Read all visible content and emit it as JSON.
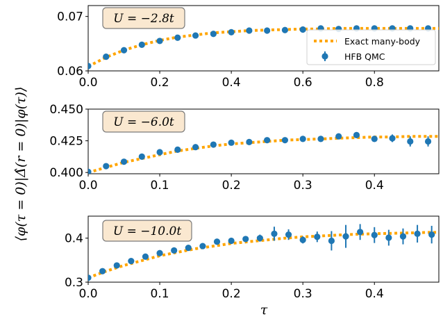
{
  "chart_data": {
    "type": "scatter",
    "ylabel": "⟨φ(τ = 0)|Δ̂(r = 0)|φ(τ)⟩",
    "xlabel": "τ",
    "legend": {
      "position": "lower-right",
      "entries": [
        "Exact many-body",
        "HFB QMC"
      ]
    },
    "colors": {
      "exact": "#ffa500",
      "qmc": "#1f77b4"
    },
    "panels": [
      {
        "annotation": "U = −2.8t",
        "xlim": [
          0,
          0.98
        ],
        "ylim": [
          0.06,
          0.072
        ],
        "xticks": [
          "0.0",
          "0.2",
          "0.4",
          "0.6",
          "0.8"
        ],
        "yticks": [
          "0.06",
          "0.07"
        ],
        "xtick_values": [
          0,
          0.2,
          0.4,
          0.6,
          0.8
        ],
        "ytick_values": [
          0.06,
          0.07
        ],
        "exact": {
          "x": [
            0,
            0.05,
            0.1,
            0.15,
            0.2,
            0.25,
            0.3,
            0.35,
            0.4,
            0.45,
            0.5,
            0.55,
            0.6,
            0.65,
            0.7,
            0.75,
            0.8,
            0.85,
            0.9,
            0.95,
            0.98
          ],
          "y": [
            0.0608,
            0.0625,
            0.0638,
            0.0648,
            0.0656,
            0.0662,
            0.0666,
            0.067,
            0.0672,
            0.0674,
            0.0675,
            0.0676,
            0.0677,
            0.0677,
            0.0678,
            0.0678,
            0.0678,
            0.0678,
            0.0678,
            0.0678,
            0.0678
          ]
        },
        "qmc": {
          "x": [
            0.0,
            0.05,
            0.1,
            0.15,
            0.2,
            0.25,
            0.3,
            0.35,
            0.4,
            0.45,
            0.5,
            0.55,
            0.6,
            0.65,
            0.7,
            0.75,
            0.8,
            0.85,
            0.9,
            0.95
          ],
          "y": [
            0.0609,
            0.0626,
            0.0638,
            0.0648,
            0.0655,
            0.0661,
            0.0665,
            0.0668,
            0.0671,
            0.0674,
            0.0674,
            0.0675,
            0.0676,
            0.0678,
            0.0677,
            0.0678,
            0.0678,
            0.0678,
            0.0678,
            0.0678
          ],
          "err": [
            0,
            0,
            0,
            0,
            0,
            0,
            0,
            0,
            0,
            0,
            0,
            0,
            0,
            0,
            0,
            0,
            0,
            0,
            0,
            0
          ]
        }
      },
      {
        "annotation": "U = −6.0t",
        "xlim": [
          0,
          0.49
        ],
        "ylim": [
          0.399,
          0.45
        ],
        "xticks": [
          "0.0",
          "0.1",
          "0.2",
          "0.3",
          "0.4"
        ],
        "yticks": [
          "0.400",
          "0.425",
          "0.450"
        ],
        "xtick_values": [
          0,
          0.1,
          0.2,
          0.3,
          0.4
        ],
        "ytick_values": [
          0.4,
          0.425,
          0.45
        ],
        "exact": {
          "x": [
            0,
            0.025,
            0.05,
            0.075,
            0.1,
            0.125,
            0.15,
            0.175,
            0.2,
            0.225,
            0.25,
            0.275,
            0.3,
            0.325,
            0.35,
            0.375,
            0.4,
            0.425,
            0.45,
            0.475,
            0.49
          ],
          "y": [
            0.4,
            0.404,
            0.408,
            0.411,
            0.414,
            0.417,
            0.419,
            0.421,
            0.4225,
            0.4235,
            0.4245,
            0.4255,
            0.426,
            0.4265,
            0.427,
            0.4275,
            0.428,
            0.428,
            0.4285,
            0.4285,
            0.4285
          ]
        },
        "qmc": {
          "x": [
            0.0,
            0.025,
            0.05,
            0.075,
            0.1,
            0.125,
            0.15,
            0.175,
            0.2,
            0.225,
            0.25,
            0.275,
            0.3,
            0.325,
            0.35,
            0.375,
            0.4,
            0.425,
            0.45,
            0.475
          ],
          "y": [
            0.4005,
            0.405,
            0.4085,
            0.4125,
            0.416,
            0.418,
            0.42,
            0.422,
            0.4235,
            0.424,
            0.4255,
            0.4255,
            0.4265,
            0.4265,
            0.4285,
            0.4295,
            0.4265,
            0.427,
            0.4245,
            0.4245
          ],
          "err": [
            0.0005,
            0.0005,
            0.0005,
            0.0005,
            0.0005,
            0.0005,
            0.0005,
            0.0005,
            0.0005,
            0.0005,
            0.0008,
            0.0008,
            0.001,
            0.001,
            0.0015,
            0.002,
            0.0015,
            0.003,
            0.004,
            0.004
          ]
        }
      },
      {
        "annotation": "U = −10.0t",
        "xlim": [
          0,
          0.49
        ],
        "ylim": [
          0.3,
          0.45
        ],
        "xticks": [
          "0.0",
          "0.1",
          "0.2",
          "0.3",
          "0.4"
        ],
        "yticks": [
          "0.3",
          "0.4"
        ],
        "xtick_values": [
          0,
          0.1,
          0.2,
          0.3,
          0.4
        ],
        "ytick_values": [
          0.3,
          0.4
        ],
        "exact": {
          "x": [
            0,
            0.025,
            0.05,
            0.075,
            0.1,
            0.125,
            0.15,
            0.175,
            0.2,
            0.225,
            0.25,
            0.275,
            0.3,
            0.325,
            0.35,
            0.375,
            0.4,
            0.425,
            0.45,
            0.475,
            0.49
          ],
          "y": [
            0.31,
            0.325,
            0.338,
            0.349,
            0.36,
            0.368,
            0.376,
            0.382,
            0.388,
            0.392,
            0.396,
            0.4,
            0.403,
            0.405,
            0.407,
            0.409,
            0.41,
            0.411,
            0.412,
            0.413,
            0.413
          ]
        },
        "qmc": {
          "x": [
            0.0,
            0.02,
            0.04,
            0.06,
            0.08,
            0.1,
            0.12,
            0.14,
            0.16,
            0.18,
            0.2,
            0.22,
            0.24,
            0.26,
            0.28,
            0.3,
            0.32,
            0.34,
            0.36,
            0.38,
            0.4,
            0.42,
            0.44,
            0.46,
            0.48
          ],
          "y": [
            0.31,
            0.325,
            0.338,
            0.348,
            0.358,
            0.366,
            0.372,
            0.378,
            0.382,
            0.392,
            0.394,
            0.398,
            0.4,
            0.41,
            0.408,
            0.396,
            0.403,
            0.394,
            0.404,
            0.414,
            0.407,
            0.401,
            0.404,
            0.41,
            0.408
          ],
          "err": [
            0,
            0,
            0,
            0,
            0,
            0,
            0,
            0,
            0.003,
            0.003,
            0.004,
            0.006,
            0.008,
            0.016,
            0.012,
            0.008,
            0.012,
            0.022,
            0.026,
            0.018,
            0.018,
            0.018,
            0.018,
            0.02,
            0.02
          ]
        }
      }
    ]
  }
}
